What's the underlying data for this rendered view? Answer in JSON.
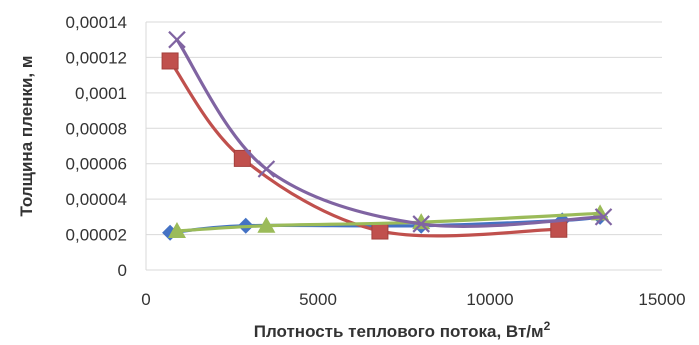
{
  "chart_data": {
    "type": "line",
    "xlabel": "Плотность теплового потока, Вт/м",
    "xlabel_superscript": "2",
    "ylabel": "Толщина пленки, м",
    "xlim": [
      0,
      15000
    ],
    "ylim": [
      0,
      0.00014
    ],
    "x_ticks": [
      0,
      5000,
      10000,
      15000
    ],
    "x_tick_labels": [
      "0",
      "5000",
      "10000",
      "15000"
    ],
    "y_ticks": [
      0,
      2e-05,
      4e-05,
      6e-05,
      8e-05,
      0.0001,
      0.00012,
      0.00014
    ],
    "y_tick_labels": [
      "0",
      "0,00002",
      "0,00004",
      "0,00006",
      "0,00008",
      "0,0001",
      "0,00012",
      "0,00014"
    ],
    "grid": "horizontal",
    "legend": "none",
    "series": [
      {
        "color": "#4472C4",
        "marker": "diamond",
        "x": [
          700,
          2900,
          8000,
          12100,
          13200
        ],
        "y": [
          2.1e-05,
          2.5e-05,
          2.5e-05,
          2.8e-05,
          3e-05
        ]
      },
      {
        "color": "#C0504D",
        "marker": "square",
        "x": [
          700,
          2800,
          6800,
          12000
        ],
        "y": [
          0.000118,
          6.3e-05,
          2.2e-05,
          2.3e-05
        ]
      },
      {
        "color": "#9BBB59",
        "marker": "triangle",
        "x": [
          900,
          3500,
          8000,
          13200
        ],
        "y": [
          2.2e-05,
          2.5e-05,
          2.7e-05,
          3.2e-05
        ]
      },
      {
        "color": "#8064A2",
        "marker": "x",
        "x": [
          900,
          3500,
          8000,
          13300
        ],
        "y": [
          0.00013,
          5.7e-05,
          2.6e-05,
          3e-05
        ]
      }
    ]
  }
}
